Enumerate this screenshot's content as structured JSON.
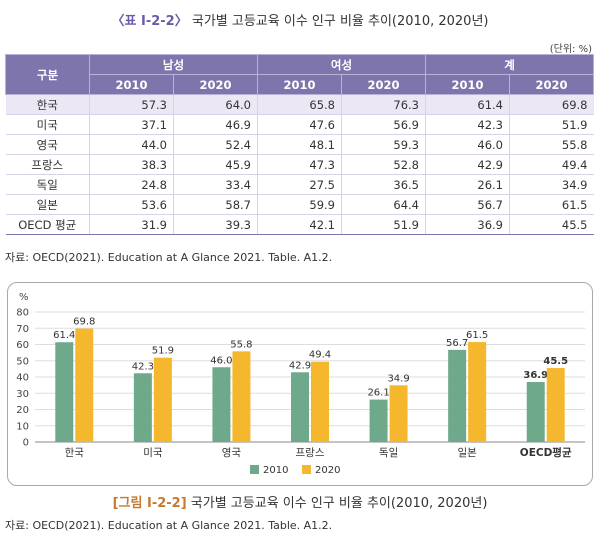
{
  "table_title": {
    "label": "〈표 Ⅰ-2-2〉",
    "text": "국가별 고등교육 이수 인구 비율 추이(2010, 2020년)"
  },
  "unit": "(단위: %)",
  "table": {
    "group_header": "구분",
    "groups": [
      "남성",
      "여성",
      "계"
    ],
    "years": [
      "2010",
      "2020"
    ],
    "rows": [
      {
        "name": "한국",
        "values": [
          "57.3",
          "64.0",
          "65.8",
          "76.3",
          "61.4",
          "69.8"
        ]
      },
      {
        "name": "미국",
        "values": [
          "37.1",
          "46.9",
          "47.6",
          "56.9",
          "42.3",
          "51.9"
        ]
      },
      {
        "name": "영국",
        "values": [
          "44.0",
          "52.4",
          "48.1",
          "59.3",
          "46.0",
          "55.8"
        ]
      },
      {
        "name": "프랑스",
        "values": [
          "38.3",
          "45.9",
          "47.3",
          "52.8",
          "42.9",
          "49.4"
        ]
      },
      {
        "name": "독일",
        "values": [
          "24.8",
          "33.4",
          "27.5",
          "36.5",
          "26.1",
          "34.9"
        ]
      },
      {
        "name": "일본",
        "values": [
          "53.6",
          "58.7",
          "59.9",
          "64.4",
          "56.7",
          "61.5"
        ]
      },
      {
        "name": "OECD 평균",
        "values": [
          "31.9",
          "39.3",
          "42.1",
          "51.9",
          "36.9",
          "45.5"
        ]
      }
    ]
  },
  "source": "자료: OECD(2021). Education at A Glance 2021. Table. A1.2.",
  "figure_title": {
    "label": "[그림 Ⅰ-2-2]",
    "text": "국가별 고등교육 이수 인구 비율 추이(2010, 2020년)"
  },
  "colors": {
    "s2010": "#6fa98c",
    "s2020": "#f5b72e",
    "header": "#7f75ad"
  },
  "chart_data": {
    "type": "bar",
    "ylabel": "%",
    "ylim": [
      0,
      80
    ],
    "yticks": [
      0,
      10,
      20,
      30,
      40,
      50,
      60,
      70,
      80
    ],
    "grid": true,
    "legend": "bottom",
    "categories": [
      "한국",
      "미국",
      "영국",
      "프랑스",
      "독일",
      "일본",
      "OECD평균"
    ],
    "series": [
      {
        "name": "2010",
        "values": [
          61.4,
          42.3,
          46.0,
          42.9,
          26.1,
          56.7,
          36.9
        ]
      },
      {
        "name": "2020",
        "values": [
          69.8,
          51.9,
          55.8,
          49.4,
          34.9,
          61.5,
          45.5
        ]
      }
    ]
  }
}
